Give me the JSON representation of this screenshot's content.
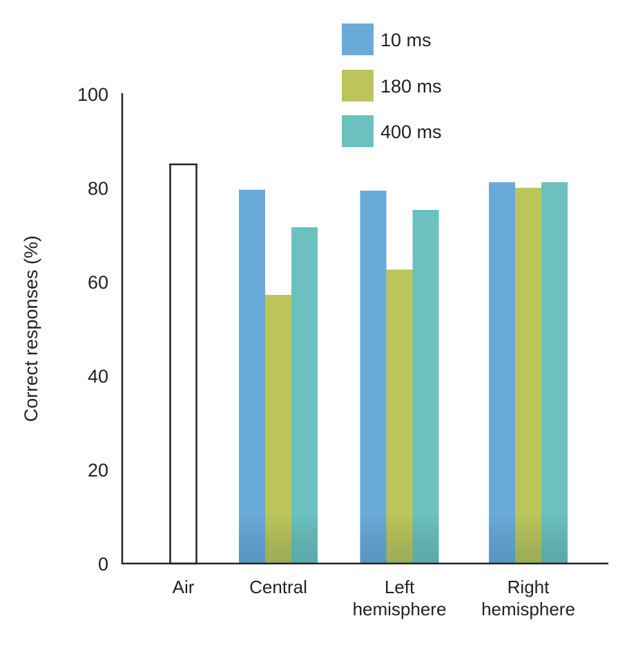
{
  "chart_data": {
    "type": "bar",
    "title": "",
    "xlabel": "",
    "ylabel": "Correct responses (%)",
    "ylim": [
      0,
      100
    ],
    "yticks": [
      0,
      20,
      40,
      60,
      80,
      100
    ],
    "grid": false,
    "legend_position": "top-right",
    "categories": [
      {
        "lines": [
          "Air"
        ]
      },
      {
        "lines": [
          "Central"
        ]
      },
      {
        "lines": [
          "Left",
          "hemisphere"
        ]
      },
      {
        "lines": [
          "Right",
          "hemisphere"
        ]
      }
    ],
    "control": {
      "name": "Air",
      "category_index": 0,
      "value": 85,
      "style": "outline"
    },
    "series": [
      {
        "name": "10 ms",
        "color": "#6aaad9",
        "values": [
          null,
          79.6,
          79.4,
          81.2
        ]
      },
      {
        "name": "180 ms",
        "color": "#bbc55a",
        "values": [
          null,
          57.2,
          62.6,
          80.0
        ]
      },
      {
        "name": "400 ms",
        "color": "#6cc0bf",
        "values": [
          null,
          71.6,
          75.3,
          81.2
        ]
      }
    ]
  }
}
